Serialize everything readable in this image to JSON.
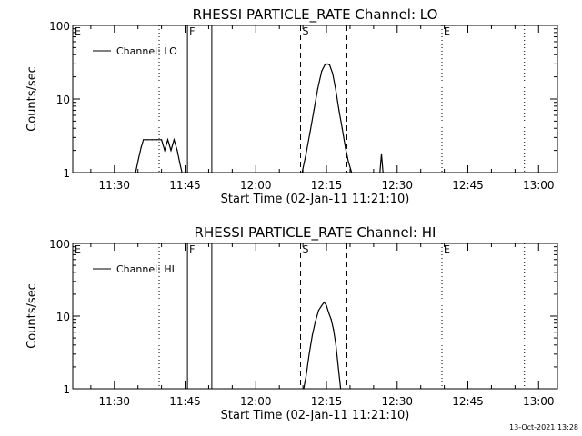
{
  "chart_data": [
    {
      "type": "line",
      "title": "RHESSI PARTICLE_RATE Channel: LO",
      "xlabel": "Start Time (02-Jan-11 11:21:10)",
      "ylabel": "Counts/sec",
      "yscale": "log",
      "ylim": [
        1,
        100
      ],
      "xlim": [
        "11:21:10",
        "13:04:00"
      ],
      "xticks": [
        "11:30",
        "11:45",
        "12:00",
        "12:15",
        "12:30",
        "12:45",
        "13:00"
      ],
      "yticks": [
        "1",
        "10",
        "100"
      ],
      "grid": false,
      "legend": {
        "position": "top-left"
      },
      "series": [
        {
          "name": "Channel: LO",
          "x": [
            "11:34:30",
            "11:35:10",
            "11:35:40",
            "11:36:10",
            "11:37:00",
            "11:38:00",
            "11:39:00",
            "11:40:00",
            "11:40:40",
            "11:41:20",
            "11:42:00",
            "11:42:40",
            "11:43:20",
            "11:43:50",
            "11:44:20",
            "12:09:50",
            "12:10:40",
            "12:11:30",
            "12:12:20",
            "12:13:10",
            "12:14:00",
            "12:14:40",
            "12:15:10",
            "12:15:40",
            "12:16:20",
            "12:17:00",
            "12:17:40",
            "12:18:20",
            "12:19:00",
            "12:19:40",
            "12:20:20",
            "12:26:20",
            "12:26:40",
            "12:27:00"
          ],
          "y": [
            1,
            1.6,
            2.2,
            2.8,
            2.8,
            2.8,
            2.8,
            2.8,
            2.0,
            2.8,
            2.0,
            2.8,
            2.0,
            1.4,
            1,
            1,
            1.8,
            3.5,
            7,
            14,
            24,
            29,
            30,
            29,
            22,
            13,
            7,
            4,
            2.2,
            1.4,
            1,
            1,
            1.8,
            1
          ],
          "segments": [
            [
              0,
              14
            ],
            [
              15,
              30
            ],
            [
              31,
              33
            ]
          ]
        }
      ],
      "annotations": [
        {
          "label": "E",
          "x": "11:21:10",
          "line": "none"
        },
        {
          "label": "",
          "x": "11:39:30",
          "line": "dotted"
        },
        {
          "label": "F",
          "x": "11:45:30",
          "line": "solid"
        },
        {
          "label": "",
          "x": "11:50:40",
          "line": "solid"
        },
        {
          "label": "S",
          "x": "12:09:30",
          "line": "dashed"
        },
        {
          "label": "",
          "x": "12:19:20",
          "line": "dashed"
        },
        {
          "label": "E",
          "x": "12:39:30",
          "line": "dotted"
        },
        {
          "label": "",
          "x": "12:57:00",
          "line": "dotted"
        }
      ]
    },
    {
      "type": "line",
      "title": "RHESSI PARTICLE_RATE Channel: HI",
      "xlabel": "Start Time (02-Jan-11 11:21:10)",
      "ylabel": "Counts/sec",
      "yscale": "log",
      "ylim": [
        1,
        100
      ],
      "xlim": [
        "11:21:10",
        "13:04:00"
      ],
      "xticks": [
        "11:30",
        "11:45",
        "12:00",
        "12:15",
        "12:30",
        "12:45",
        "13:00"
      ],
      "yticks": [
        "1",
        "10",
        "100"
      ],
      "grid": false,
      "legend": {
        "position": "top-left"
      },
      "series": [
        {
          "name": "Channel: HI",
          "x": [
            "12:10:10",
            "12:10:40",
            "12:11:20",
            "12:12:00",
            "12:12:40",
            "12:13:20",
            "12:14:00",
            "12:14:30",
            "12:15:00",
            "12:15:30",
            "12:16:00",
            "12:16:30",
            "12:17:00",
            "12:17:30",
            "12:18:00"
          ],
          "y": [
            1,
            1.5,
            3,
            5.5,
            8.5,
            12,
            14,
            15.5,
            14,
            11,
            9,
            6.5,
            4,
            2,
            1
          ],
          "segments": [
            [
              0,
              14
            ]
          ]
        }
      ],
      "annotations": [
        {
          "label": "E",
          "x": "11:21:10",
          "line": "none"
        },
        {
          "label": "",
          "x": "11:39:30",
          "line": "dotted"
        },
        {
          "label": "F",
          "x": "11:45:30",
          "line": "solid"
        },
        {
          "label": "",
          "x": "11:50:40",
          "line": "solid"
        },
        {
          "label": "S",
          "x": "12:09:30",
          "line": "dashed"
        },
        {
          "label": "",
          "x": "12:19:20",
          "line": "dashed"
        },
        {
          "label": "E",
          "x": "12:39:30",
          "line": "dotted"
        },
        {
          "label": "",
          "x": "12:57:00",
          "line": "dotted"
        }
      ]
    }
  ],
  "footer": {
    "timestamp": "13-Oct-2021 13:28"
  }
}
